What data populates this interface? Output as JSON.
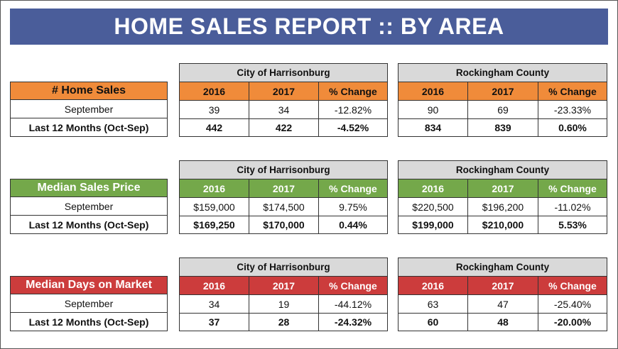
{
  "title": "HOME SALES REPORT  ::  BY AREA",
  "col_headers": [
    "2016",
    "2017",
    "% Change"
  ],
  "row_labels": [
    "September",
    "Last 12 Months (Oct-Sep)"
  ],
  "sections": [
    {
      "category": "# Home Sales",
      "city": {
        "name": "City of Harrisonburg",
        "rows": [
          [
            "39",
            "34",
            "-12.82%"
          ],
          [
            "442",
            "422",
            "-4.52%"
          ]
        ]
      },
      "county": {
        "name": "Rockingham County",
        "rows": [
          [
            "90",
            "69",
            "-23.33%"
          ],
          [
            "834",
            "839",
            "0.60%"
          ]
        ]
      }
    },
    {
      "category": "Median Sales Price",
      "city": {
        "name": "City of Harrisonburg",
        "rows": [
          [
            "$159,000",
            "$174,500",
            "9.75%"
          ],
          [
            "$169,250",
            "$170,000",
            "0.44%"
          ]
        ]
      },
      "county": {
        "name": "Rockingham County",
        "rows": [
          [
            "$220,500",
            "$196,200",
            "-11.02%"
          ],
          [
            "$199,000",
            "$210,000",
            "5.53%"
          ]
        ]
      }
    },
    {
      "category": "Median Days on Market",
      "city": {
        "name": "City of Harrisonburg",
        "rows": [
          [
            "34",
            "19",
            "-44.12%"
          ],
          [
            "37",
            "28",
            "-24.32%"
          ]
        ]
      },
      "county": {
        "name": "Rockingham County",
        "rows": [
          [
            "63",
            "47",
            "-25.40%"
          ],
          [
            "60",
            "48",
            "-20.00%"
          ]
        ]
      }
    }
  ],
  "colors": {
    "banner": "#4a5d9a",
    "home_sales": "#f08b3a",
    "sales_price": "#74a84a",
    "days_on_market": "#cc3c3c",
    "header_gray": "#d9d9d9"
  }
}
